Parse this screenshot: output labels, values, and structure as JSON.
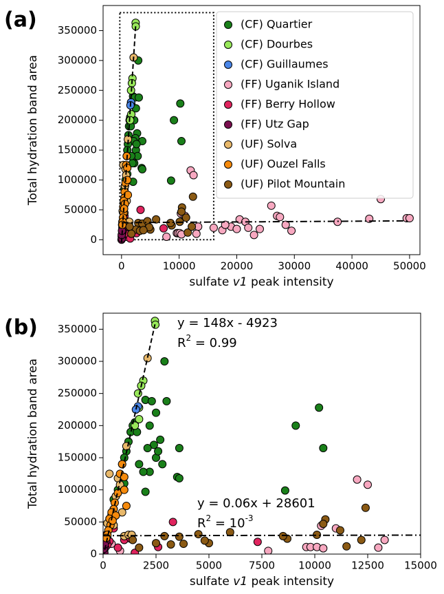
{
  "chart_data": [
    {
      "type": "scatter",
      "panel_label": "(a)",
      "xlabel": [
        "sulfate ",
        "v1",
        " peak intensity"
      ],
      "ylabel": "Total hydration band area",
      "xlim": [
        -3200,
        51800
      ],
      "xticks": [
        0,
        10000,
        20000,
        30000,
        40000,
        50000
      ],
      "ylim": [
        -25000,
        392000
      ],
      "yticks": [
        0,
        50000,
        100000,
        150000,
        200000,
        250000,
        300000,
        350000
      ],
      "legend": "upper right",
      "zoom_box": {
        "xlim": [
          -300,
          16000
        ],
        "ylim": [
          0,
          380000
        ]
      },
      "fits": [
        {
          "slope": 148,
          "intercept": -4923,
          "x_range": [
            0,
            2450
          ],
          "style": "dashed"
        },
        {
          "slope": 0.06,
          "intercept": 28601,
          "x_range": [
            0,
            50000
          ],
          "style": "dashdot"
        }
      ],
      "series": [
        {
          "name": "(CF) Quartier",
          "color": "#1a801a",
          "x": [
            2000,
            2300,
            2900,
            3000,
            2500,
            2700,
            2400,
            2500,
            2800,
            3600,
            3500,
            3600,
            2200,
            2100,
            2200,
            1900,
            2000,
            2600,
            9100,
            10200,
            10400,
            8600,
            1500,
            1400,
            1300,
            1200,
            1100,
            1000,
            900,
            800,
            700,
            600,
            500,
            1600,
            1700,
            1000
          ],
          "y": [
            240000,
            238000,
            300000,
            238000,
            220000,
            178000,
            170000,
            150000,
            140000,
            165000,
            120000,
            118000,
            200000,
            165000,
            128000,
            128000,
            97000,
            160000,
            200000,
            228000,
            165000,
            99000,
            205000,
            200000,
            190000,
            175000,
            160000,
            150000,
            140000,
            120000,
            100000,
            90000,
            85000,
            190000,
            140000,
            110000
          ]
        },
        {
          "name": "(CF) Dourbes",
          "color": "#98e85a",
          "x": [
            2450,
            2470,
            1900,
            1800,
            1650,
            1700,
            1700,
            1500
          ],
          "y": [
            363000,
            357000,
            270000,
            262000,
            250000,
            228000,
            210000,
            200000
          ]
        },
        {
          "name": "(CF) Guillaumes",
          "color": "#4a86e8",
          "x": [
            1650,
            1550
          ],
          "y": [
            230000,
            225000
          ]
        },
        {
          "name": "(FF) Uganik Island",
          "color": "#f7a8c0",
          "x": [
            12000,
            12500,
            7800,
            9600,
            9800,
            10100,
            10400,
            10300,
            13300,
            13000,
            16000,
            17500,
            19000,
            20500,
            21500,
            22000,
            24000,
            26000,
            27000,
            27500,
            28500,
            29500,
            37500,
            43000,
            45000,
            49500,
            50000,
            20000,
            18000,
            23000,
            11000,
            400,
            800
          ],
          "y": [
            116000,
            108000,
            5000,
            11000,
            11000,
            11000,
            9000,
            44000,
            22000,
            10000,
            20000,
            16000,
            22000,
            34000,
            30000,
            20000,
            18000,
            57000,
            40000,
            38000,
            25000,
            15000,
            30000,
            35000,
            68000,
            36000,
            36000,
            18000,
            25000,
            8000,
            40000,
            16000,
            5000
          ]
        },
        {
          "name": "(FF) Berry Hollow",
          "color": "#e0245e",
          "x": [
            2600,
            3300,
            7300,
            50,
            150,
            300,
            500,
            700,
            1000,
            1300,
            1500,
            200
          ],
          "y": [
            11000,
            50000,
            19000,
            5000,
            30000,
            20000,
            40000,
            10000,
            22000,
            24000,
            2000,
            14000
          ]
        },
        {
          "name": "(FF) Utz Gap",
          "color": "#7a0f4f",
          "x": [
            0,
            50,
            100,
            150,
            60,
            200,
            100,
            30,
            80
          ],
          "y": [
            0,
            5000,
            10000,
            20000,
            2000,
            28000,
            25000,
            8000,
            15000
          ]
        },
        {
          "name": "(UF) Solva",
          "color": "#e8b86a",
          "x": [
            2100,
            1100,
            300,
            700,
            800,
            400,
            200,
            500,
            1000,
            1200,
            1350,
            600,
            900
          ],
          "y": [
            305000,
            168000,
            125000,
            118000,
            108000,
            62000,
            48000,
            45000,
            28000,
            30000,
            30000,
            90000,
            65000
          ]
        },
        {
          "name": "(UF) Ouzel Falls",
          "color": "#f58a0c",
          "x": [
            900,
            800,
            1000,
            700,
            550,
            500,
            400,
            300,
            350,
            250,
            200,
            150,
            600,
            1000,
            1100,
            450
          ],
          "y": [
            140000,
            125000,
            120000,
            95000,
            80000,
            70000,
            65000,
            55000,
            45000,
            37000,
            30000,
            25000,
            60000,
            100000,
            75000,
            52000
          ]
        },
        {
          "name": "(UF) Pilot Mountain",
          "color": "#8b5a14",
          "x": [
            12400,
            10500,
            10400,
            11200,
            10100,
            11500,
            2900,
            3600,
            4500,
            5000,
            6000,
            12200,
            8700,
            8500,
            4800,
            2500,
            3200,
            3800,
            1400,
            1700
          ],
          "y": [
            72000,
            54000,
            47000,
            37000,
            30000,
            12000,
            28000,
            27000,
            31000,
            17000,
            34000,
            22000,
            24000,
            28000,
            21000,
            17000,
            15000,
            16000,
            22000,
            10000
          ]
        }
      ]
    },
    {
      "type": "scatter",
      "panel_label": "(b)",
      "xlabel": [
        "sulfate ",
        "v1",
        " peak intensity"
      ],
      "ylabel": "Total hydration band area",
      "xlim": [
        0,
        15000
      ],
      "xticks": [
        0,
        2500,
        5000,
        7500,
        10000,
        12500,
        15000
      ],
      "ylim": [
        0,
        375000
      ],
      "yticks": [
        0,
        50000,
        100000,
        150000,
        200000,
        250000,
        300000,
        350000
      ],
      "fits": [
        {
          "slope": 148,
          "intercept": -4923,
          "x_range": [
            0,
            2450
          ],
          "style": "dashed",
          "equation": "y = 148x - 4923",
          "r2": [
            "R",
            "2",
            " = 0.99"
          ]
        },
        {
          "slope": 0.06,
          "intercept": 28601,
          "x_range": [
            0,
            50000
          ],
          "style": "dashdot",
          "equation": "y = 0.06x + 28601",
          "r2": [
            "R",
            "2",
            " = 10",
            "-3"
          ]
        }
      ],
      "series": [
        {
          "color": "#1a801a",
          "x": [
            2000,
            2300,
            2900,
            3000,
            2500,
            2700,
            2400,
            2500,
            2800,
            3600,
            3500,
            3600,
            2200,
            2100,
            2200,
            1900,
            2000,
            2600,
            9100,
            10200,
            10400,
            8600,
            1500,
            1400,
            1300,
            1200,
            1100,
            1000,
            900,
            800,
            700,
            600,
            500,
            1600,
            1700,
            1000
          ],
          "y": [
            240000,
            238000,
            300000,
            238000,
            220000,
            178000,
            170000,
            150000,
            140000,
            165000,
            120000,
            118000,
            200000,
            165000,
            128000,
            128000,
            97000,
            160000,
            200000,
            228000,
            165000,
            99000,
            205000,
            200000,
            190000,
            175000,
            160000,
            150000,
            140000,
            120000,
            100000,
            90000,
            85000,
            190000,
            140000,
            110000
          ]
        },
        {
          "color": "#98e85a",
          "x": [
            2450,
            2470,
            1900,
            1800,
            1650,
            1700,
            1700,
            1500
          ],
          "y": [
            363000,
            357000,
            270000,
            262000,
            250000,
            228000,
            210000,
            200000
          ]
        },
        {
          "color": "#4a86e8",
          "x": [
            1650,
            1550
          ],
          "y": [
            230000,
            225000
          ]
        },
        {
          "color": "#f7a8c0",
          "x": [
            12000,
            12500,
            7800,
            9600,
            9800,
            10100,
            10400,
            10300,
            13300,
            13000,
            11000,
            400,
            800
          ],
          "y": [
            116000,
            108000,
            5000,
            11000,
            11000,
            11000,
            9000,
            44000,
            22000,
            10000,
            40000,
            16000,
            5000
          ]
        },
        {
          "color": "#e0245e",
          "x": [
            2600,
            3300,
            7300,
            50,
            150,
            300,
            500,
            700,
            1000,
            1300,
            1500,
            200
          ],
          "y": [
            11000,
            50000,
            19000,
            5000,
            30000,
            20000,
            40000,
            10000,
            22000,
            24000,
            2000,
            14000
          ]
        },
        {
          "color": "#7a0f4f",
          "x": [
            0,
            50,
            100,
            150,
            60,
            200,
            100,
            30,
            80
          ],
          "y": [
            0,
            5000,
            10000,
            20000,
            2000,
            28000,
            25000,
            8000,
            15000
          ]
        },
        {
          "color": "#e8b86a",
          "x": [
            2100,
            1100,
            300,
            700,
            800,
            400,
            200,
            500,
            1000,
            1200,
            1350,
            600,
            900
          ],
          "y": [
            305000,
            168000,
            125000,
            118000,
            108000,
            62000,
            48000,
            45000,
            28000,
            30000,
            30000,
            90000,
            65000
          ]
        },
        {
          "color": "#f58a0c",
          "x": [
            900,
            800,
            1000,
            700,
            550,
            500,
            400,
            300,
            350,
            250,
            200,
            150,
            600,
            1000,
            1100,
            450
          ],
          "y": [
            140000,
            125000,
            120000,
            95000,
            80000,
            70000,
            65000,
            55000,
            45000,
            37000,
            30000,
            25000,
            60000,
            100000,
            75000,
            52000
          ]
        },
        {
          "color": "#8b5a14",
          "x": [
            12400,
            10500,
            10400,
            11200,
            10100,
            11500,
            2900,
            3600,
            4500,
            5000,
            6000,
            12200,
            8700,
            8500,
            4800,
            2500,
            3200,
            3800,
            1400,
            1700
          ],
          "y": [
            72000,
            54000,
            47000,
            37000,
            30000,
            12000,
            28000,
            27000,
            31000,
            17000,
            34000,
            22000,
            24000,
            28000,
            21000,
            17000,
            15000,
            16000,
            22000,
            10000
          ]
        }
      ]
    }
  ]
}
